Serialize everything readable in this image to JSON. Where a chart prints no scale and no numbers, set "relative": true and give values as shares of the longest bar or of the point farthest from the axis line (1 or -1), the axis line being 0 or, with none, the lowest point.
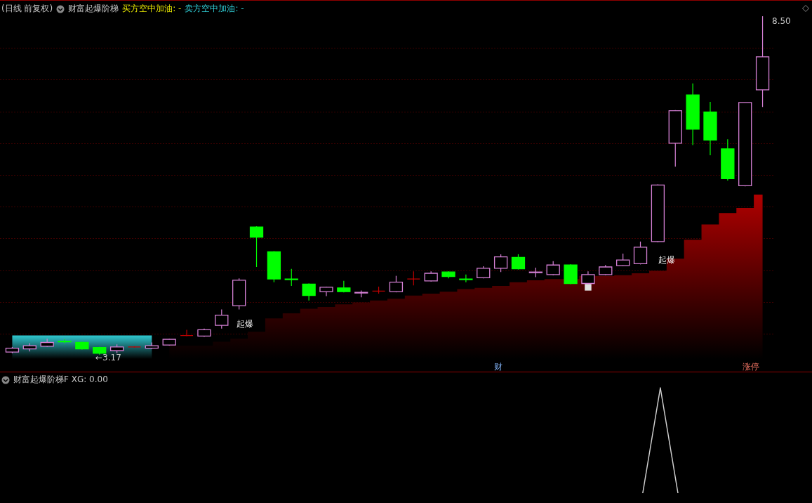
{
  "chart_data": [
    {
      "type": "candlestick",
      "title": "(日线 前复权)",
      "subtitle": "财富起爆阶梯",
      "annotations": [
        "买方空中加油: -",
        "卖方空中加油: -",
        "←3.17",
        "8.50",
        "起爆",
        "起爆",
        "财",
        "涨停"
      ],
      "categories": [
        null,
        null,
        null,
        null,
        null,
        null,
        null,
        null,
        null,
        null,
        null,
        null,
        null,
        null,
        null,
        null,
        null,
        null,
        null,
        null,
        null,
        null,
        null,
        null,
        null,
        null,
        null,
        null,
        null,
        null,
        null,
        null,
        null,
        null,
        null,
        null,
        null,
        null,
        null,
        null,
        null,
        null,
        null,
        null
      ],
      "ohlc": [
        [
          3.21,
          3.29,
          3.19,
          3.27
        ],
        [
          3.26,
          3.35,
          3.22,
          3.31
        ],
        [
          3.3,
          3.42,
          3.29,
          3.36
        ],
        [
          3.38,
          3.41,
          3.35,
          3.37
        ],
        [
          3.36,
          3.37,
          3.25,
          3.26
        ],
        [
          3.28,
          3.29,
          3.17,
          3.19
        ],
        [
          3.23,
          3.33,
          3.19,
          3.29
        ],
        [
          3.29,
          3.3,
          3.28,
          3.29
        ],
        [
          3.27,
          3.36,
          3.26,
          3.31
        ],
        [
          3.32,
          3.42,
          3.31,
          3.41
        ],
        [
          3.47,
          3.56,
          3.46,
          3.47
        ],
        [
          3.46,
          3.58,
          3.45,
          3.56
        ],
        [
          3.63,
          3.88,
          3.58,
          3.79
        ],
        [
          3.94,
          4.37,
          3.88,
          4.34
        ],
        [
          5.18,
          5.19,
          4.55,
          5.02
        ],
        [
          4.79,
          4.8,
          4.31,
          4.36
        ],
        [
          4.36,
          4.52,
          4.25,
          4.35
        ],
        [
          4.28,
          4.29,
          4.02,
          4.1
        ],
        [
          4.16,
          4.24,
          4.09,
          4.23
        ],
        [
          4.22,
          4.33,
          4.15,
          4.16
        ],
        [
          4.14,
          4.18,
          4.07,
          4.15
        ],
        [
          4.17,
          4.24,
          4.13,
          4.17
        ],
        [
          4.16,
          4.41,
          4.15,
          4.31
        ],
        [
          4.36,
          4.48,
          4.26,
          4.36
        ],
        [
          4.33,
          4.48,
          4.32,
          4.45
        ],
        [
          4.47,
          4.48,
          4.37,
          4.4
        ],
        [
          4.36,
          4.43,
          4.31,
          4.35
        ],
        [
          4.38,
          4.56,
          4.37,
          4.53
        ],
        [
          4.53,
          4.75,
          4.47,
          4.71
        ],
        [
          4.7,
          4.75,
          4.51,
          4.52
        ],
        [
          4.46,
          4.54,
          4.39,
          4.47
        ],
        [
          4.43,
          4.64,
          4.42,
          4.58
        ],
        [
          4.58,
          4.59,
          4.28,
          4.29
        ],
        [
          4.29,
          4.48,
          4.28,
          4.43
        ],
        [
          4.43,
          4.58,
          4.42,
          4.55
        ],
        [
          4.57,
          4.76,
          4.56,
          4.66
        ],
        [
          4.6,
          4.95,
          4.59,
          4.86
        ],
        [
          4.95,
          5.85,
          4.94,
          5.84
        ],
        [
          6.5,
          7.02,
          6.13,
          7.01
        ],
        [
          7.26,
          7.44,
          6.47,
          6.72
        ],
        [
          6.99,
          7.15,
          6.31,
          6.55
        ],
        [
          6.41,
          6.56,
          5.91,
          5.94
        ],
        [
          5.83,
          7.14,
          5.82,
          7.14
        ],
        [
          7.34,
          8.5,
          7.07,
          7.86
        ]
      ],
      "colors": [
        "#d580d5",
        "#d580d5",
        "#d580d5",
        "#00ff00",
        "#00ff00",
        "#00ff00",
        "#d580d5",
        "#c00000",
        "#d580d5",
        "#d580d5",
        "#c00000",
        "#d580d5",
        "#d580d5",
        "#d580d5",
        "#00ff00",
        "#00ff00",
        "#00ff00",
        "#00ff00",
        "#d580d5",
        "#00ff00",
        "#d580d5",
        "#c00000",
        "#d580d5",
        "#c00000",
        "#d580d5",
        "#00ff00",
        "#00ff00",
        "#d580d5",
        "#d580d5",
        "#00ff00",
        "#d580d5",
        "#d580d5",
        "#00ff00",
        "#d580d5",
        "#d580d5",
        "#d580d5",
        "#d580d5",
        "#d580d5",
        "#d580d5",
        "#00ff00",
        "#00ff00",
        "#00ff00",
        "#d580d5",
        "#d580d5"
      ],
      "series": [
        {
          "type": "area",
          "color": "#b00000",
          "values": [
            null,
            null,
            null,
            null,
            null,
            null,
            null,
            null,
            null,
            3.31,
            3.31,
            3.31,
            3.37,
            3.42,
            3.53,
            3.74,
            3.82,
            3.89,
            3.92,
            3.96,
            3.99,
            4.02,
            4.05,
            4.1,
            4.13,
            4.16,
            4.2,
            4.22,
            4.25,
            4.31,
            4.34,
            4.36,
            null,
            null,
            4.41,
            4.42,
            4.45,
            4.49,
            4.68,
            4.98,
            5.22,
            5.4,
            5.48,
            5.69
          ]
        },
        {
          "type": "area",
          "color": "#30c8d0",
          "values": [
            3.47,
            3.47,
            3.47,
            3.47,
            3.47,
            3.47,
            3.47,
            3.47,
            3.47,
            null,
            null,
            null,
            null,
            null,
            null,
            null,
            null,
            null,
            null,
            null,
            null,
            null,
            null,
            null,
            null,
            null,
            null,
            null,
            null,
            null,
            null,
            null,
            null,
            null,
            null,
            null,
            null,
            null,
            null,
            null,
            null,
            null,
            null,
            null
          ]
        },
        {
          "type": "scatter",
          "marker": "square",
          "color": "#e0e0e0",
          "values": [
            null,
            null,
            null,
            null,
            null,
            null,
            null,
            null,
            null,
            null,
            null,
            null,
            null,
            null,
            null,
            null,
            null,
            null,
            null,
            null,
            null,
            null,
            null,
            null,
            null,
            null,
            null,
            null,
            null,
            null,
            null,
            null,
            null,
            4.23,
            null,
            null,
            null,
            null,
            null,
            null,
            null,
            null,
            null,
            null
          ]
        }
      ],
      "ylim": [
        3.1,
        8.7
      ],
      "yticks": [
        {
          "value": 3.5,
          "label": null
        },
        {
          "value": 4,
          "label": null
        },
        {
          "value": 4.5,
          "label": null
        },
        {
          "value": 5,
          "label": null
        },
        {
          "value": 5.5,
          "label": null
        },
        {
          "value": 6,
          "label": null
        },
        {
          "value": 6.5,
          "label": null
        },
        {
          "value": 7,
          "label": null
        },
        {
          "value": 7.5,
          "label": null
        },
        {
          "value": 8,
          "label": null
        }
      ],
      "grid": "y"
    },
    {
      "type": "line",
      "title": "财富起爆阶梯F XG: 0.00",
      "relative": true,
      "categories": [
        null,
        null,
        null,
        null,
        null,
        null,
        null,
        null,
        null,
        null,
        null,
        null,
        null,
        null,
        null,
        null,
        null,
        null,
        null,
        null,
        null,
        null,
        null,
        null,
        null,
        null,
        null,
        null,
        null,
        null,
        null,
        null,
        null,
        null,
        null,
        null,
        null,
        null,
        null,
        null,
        null,
        null,
        null,
        null
      ],
      "series": [
        {
          "color": "#d0d0d0",
          "values": [
            null,
            null,
            null,
            null,
            null,
            null,
            null,
            null,
            null,
            null,
            null,
            null,
            null,
            null,
            null,
            null,
            null,
            null,
            null,
            null,
            null,
            null,
            null,
            null,
            null,
            null,
            null,
            null,
            null,
            null,
            null,
            null,
            null,
            null,
            null,
            null,
            0,
            1,
            0,
            null,
            null,
            null,
            null,
            null
          ]
        }
      ]
    }
  ]
}
